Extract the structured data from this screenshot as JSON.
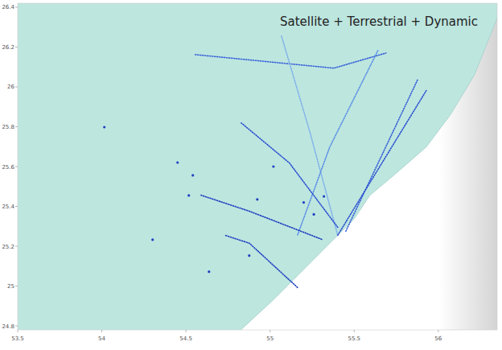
{
  "chart_data": {
    "type": "map",
    "title": "Satellite + Terrestrial + Dynamic",
    "xlim": [
      53.5,
      56.35
    ],
    "ylim": [
      24.78,
      26.42
    ],
    "xticks": [
      53.5,
      54,
      54.5,
      55,
      55.5,
      56
    ],
    "yticks": [
      24.8,
      25,
      25.2,
      25.4,
      25.6,
      25.8,
      26,
      26.2,
      26.4
    ],
    "coastline": {
      "x": [
        54.685,
        55.02,
        55.14,
        55.355,
        55.498,
        55.594,
        55.737,
        55.928,
        56.072,
        56.215,
        56.311,
        56.406
      ],
      "y": [
        24.67,
        24.932,
        25.033,
        25.215,
        25.335,
        25.456,
        25.557,
        25.698,
        25.86,
        26.061,
        26.263,
        26.465
      ]
    },
    "series": [
      {
        "type": "line",
        "color": "#3a62d8",
        "x": [
          54.556,
          55.379,
          55.689
        ],
        "y": [
          26.162,
          26.094,
          26.17
        ]
      },
      {
        "type": "line",
        "color": "#7fb0ea",
        "x": [
          55.068,
          55.235,
          55.402
        ],
        "y": [
          26.255,
          25.779,
          25.255
        ]
      },
      {
        "type": "line",
        "color": "#5b8fe4",
        "x": [
          55.641,
          55.355,
          55.163
        ],
        "y": [
          26.182,
          25.698,
          25.255
        ]
      },
      {
        "type": "line",
        "color": "#3a62d8",
        "x": [
          55.45,
          55.88
        ],
        "y": [
          25.275,
          26.041
        ]
      },
      {
        "type": "line",
        "color": "#2a4fd0",
        "x": [
          55.402,
          55.928
        ],
        "y": [
          25.255,
          25.981
        ]
      },
      {
        "type": "line",
        "color": "#1f3fc0",
        "x": [
          55.307,
          54.877,
          54.59
        ],
        "y": [
          25.235,
          25.376,
          25.456
        ]
      },
      {
        "type": "line",
        "color": "#1f3fc0",
        "x": [
          55.163,
          54.877,
          54.733
        ],
        "y": [
          24.993,
          25.215,
          25.255
        ]
      },
      {
        "type": "line",
        "color": "#2a4fd0",
        "x": [
          55.402,
          55.115,
          54.829
        ],
        "y": [
          25.295,
          25.618,
          25.819
        ]
      },
      {
        "type": "scatter",
        "color": "#2040c0",
        "x": [
          54.541,
          54.517,
          54.302,
          54.015,
          54.637,
          54.876,
          55.02,
          54.924,
          55.2,
          55.26,
          55.32,
          54.45
        ],
        "y": [
          25.556,
          25.455,
          25.233,
          25.798,
          25.072,
          25.153,
          25.6,
          25.435,
          25.42,
          25.36,
          25.45,
          25.62
        ]
      }
    ]
  }
}
